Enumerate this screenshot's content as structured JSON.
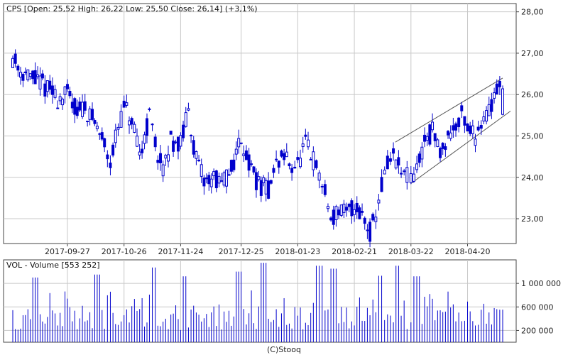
{
  "price_panel": {
    "header": "CPS [Open: 25,52  High: 26,22  Low: 25,50  Close: 26,14] (+3,1%)"
  },
  "volume_panel": {
    "header": "VOL - Volume [553 252]"
  },
  "footer": {
    "credit": "(C)Stooq"
  },
  "colors": {
    "candle": "#0000cc",
    "volume": "#0000cc",
    "grid": "#c8c8c8",
    "frame": "#444444",
    "trendline": "#555555"
  },
  "chart_data": [
    {
      "type": "candlestick",
      "title": "CPS",
      "x_tick_labels": [
        "2017-09-27",
        "2017-10-26",
        "2017-11-24",
        "2017-12-25",
        "2018-01-23",
        "2018-02-21",
        "2018-03-22",
        "2018-04-20"
      ],
      "y_tick_labels": [
        "23,00",
        "24,00",
        "25,00",
        "26,00",
        "27,00",
        "28,00"
      ],
      "y_ticks": [
        23,
        24,
        25,
        26,
        27,
        28
      ],
      "ylim": [
        22.4,
        28.2
      ],
      "x_range": [
        "2017-08-30",
        "2018-05-08"
      ],
      "grid": true,
      "close_series": [
        {
          "date": "2017-08-30",
          "close": 26.9
        },
        {
          "date": "2017-09-03",
          "close": 26.6
        },
        {
          "date": "2017-09-08",
          "close": 26.4
        },
        {
          "date": "2017-09-13",
          "close": 26.3
        },
        {
          "date": "2017-09-18",
          "close": 26.1
        },
        {
          "date": "2017-09-22",
          "close": 25.9
        },
        {
          "date": "2017-09-27",
          "close": 26.0
        },
        {
          "date": "2017-10-02",
          "close": 25.6
        },
        {
          "date": "2017-10-06",
          "close": 25.7
        },
        {
          "date": "2017-10-11",
          "close": 25.3
        },
        {
          "date": "2017-10-16",
          "close": 24.8
        },
        {
          "date": "2017-10-19",
          "close": 24.4
        },
        {
          "date": "2017-10-23",
          "close": 25.2
        },
        {
          "date": "2017-10-26",
          "close": 25.7
        },
        {
          "date": "2017-10-30",
          "close": 25.3
        },
        {
          "date": "2017-11-03",
          "close": 24.5
        },
        {
          "date": "2017-11-08",
          "close": 25.5
        },
        {
          "date": "2017-11-11",
          "close": 24.8
        },
        {
          "date": "2017-11-15",
          "close": 24.1
        },
        {
          "date": "2017-11-19",
          "close": 24.9
        },
        {
          "date": "2017-11-24",
          "close": 24.8
        },
        {
          "date": "2017-11-28",
          "close": 25.6
        },
        {
          "date": "2017-12-02",
          "close": 24.4
        },
        {
          "date": "2017-12-06",
          "close": 23.9
        },
        {
          "date": "2017-12-11",
          "close": 24.0
        },
        {
          "date": "2017-12-15",
          "close": 23.8
        },
        {
          "date": "2017-12-20",
          "close": 24.2
        },
        {
          "date": "2017-12-25",
          "close": 25.0
        },
        {
          "date": "2017-12-29",
          "close": 24.3
        },
        {
          "date": "2018-01-03",
          "close": 23.8
        },
        {
          "date": "2018-01-08",
          "close": 23.7
        },
        {
          "date": "2018-01-12",
          "close": 24.3
        },
        {
          "date": "2018-01-16",
          "close": 24.5
        },
        {
          "date": "2018-01-20",
          "close": 24.3
        },
        {
          "date": "2018-01-23",
          "close": 24.3
        },
        {
          "date": "2018-01-27",
          "close": 24.8
        },
        {
          "date": "2018-01-31",
          "close": 24.4
        },
        {
          "date": "2018-02-03",
          "close": 24.0
        },
        {
          "date": "2018-02-06",
          "close": 23.6
        },
        {
          "date": "2018-02-09",
          "close": 23.0
        },
        {
          "date": "2018-02-13",
          "close": 23.2
        },
        {
          "date": "2018-02-17",
          "close": 23.1
        },
        {
          "date": "2018-02-21",
          "close": 23.3
        },
        {
          "date": "2018-02-25",
          "close": 23.1
        },
        {
          "date": "2018-03-01",
          "close": 22.7
        },
        {
          "date": "2018-03-04",
          "close": 23.1
        },
        {
          "date": "2018-03-07",
          "close": 23.8
        },
        {
          "date": "2018-03-10",
          "close": 24.3
        },
        {
          "date": "2018-03-13",
          "close": 24.5
        },
        {
          "date": "2018-03-17",
          "close": 24.1
        },
        {
          "date": "2018-03-20",
          "close": 24.0
        },
        {
          "date": "2018-03-22",
          "close": 23.9
        },
        {
          "date": "2018-03-25",
          "close": 24.2
        },
        {
          "date": "2018-03-29",
          "close": 24.9
        },
        {
          "date": "2018-04-02",
          "close": 25.1
        },
        {
          "date": "2018-04-06",
          "close": 24.6
        },
        {
          "date": "2018-04-10",
          "close": 25.0
        },
        {
          "date": "2018-04-14",
          "close": 25.3
        },
        {
          "date": "2018-04-17",
          "close": 25.5
        },
        {
          "date": "2018-04-20",
          "close": 25.2
        },
        {
          "date": "2018-04-24",
          "close": 25.0
        },
        {
          "date": "2018-04-27",
          "close": 25.4
        },
        {
          "date": "2018-05-01",
          "close": 25.6
        },
        {
          "date": "2018-05-05",
          "close": 26.2
        },
        {
          "date": "2018-05-08",
          "close": 26.14
        }
      ],
      "trend_channel": {
        "upper": [
          {
            "date": "2018-03-14",
            "value": 24.85
          },
          {
            "date": "2018-05-08",
            "value": 26.4
          }
        ],
        "lower": [
          {
            "date": "2018-03-22",
            "value": 23.85
          },
          {
            "date": "2018-05-12",
            "value": 25.6
          }
        ]
      }
    },
    {
      "type": "bar",
      "title": "VOL - Volume",
      "y_tick_labels": [
        "200 000",
        "600 000",
        "1 000 000"
      ],
      "y_ticks": [
        200000,
        600000,
        1000000
      ],
      "ylim": [
        0,
        1400000
      ],
      "last_value": 553252,
      "x_range": [
        "2017-08-30",
        "2018-05-08"
      ],
      "volume_series": [
        {
          "date": "2017-09-10",
          "volume": 1100000
        },
        {
          "date": "2017-10-12",
          "volume": 1150000
        },
        {
          "date": "2017-11-10",
          "volume": 1270000
        },
        {
          "date": "2017-11-26",
          "volume": 1120000
        },
        {
          "date": "2017-12-24",
          "volume": 1200000
        },
        {
          "date": "2018-01-06",
          "volume": 1350000
        },
        {
          "date": "2018-02-03",
          "volume": 1300000
        },
        {
          "date": "2018-02-10",
          "volume": 1250000
        },
        {
          "date": "2018-03-06",
          "volume": 1130000
        },
        {
          "date": "2018-03-15",
          "volume": 1300000
        },
        {
          "date": "2018-03-25",
          "volume": 1120000
        },
        {
          "date": "2018-05-08",
          "volume": 553252
        }
      ]
    }
  ]
}
